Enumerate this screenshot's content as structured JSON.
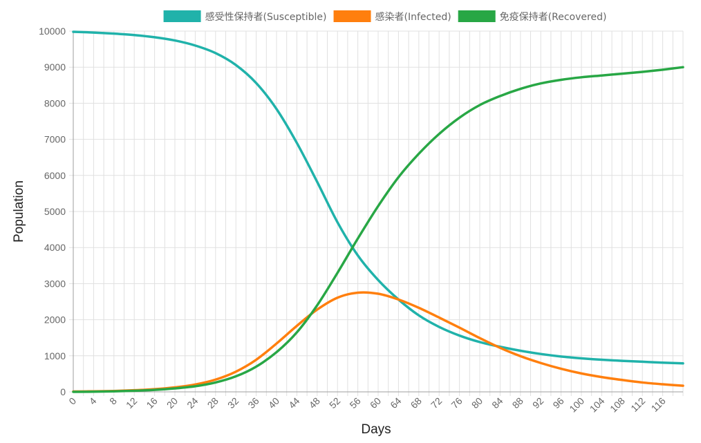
{
  "chart_data": {
    "type": "line",
    "xlabel": "Days",
    "ylabel": "Population",
    "xlim": [
      0,
      120
    ],
    "ylim": [
      0,
      10000
    ],
    "x_ticks": [
      0,
      4,
      8,
      12,
      16,
      20,
      24,
      28,
      32,
      36,
      40,
      44,
      48,
      52,
      56,
      60,
      64,
      68,
      72,
      76,
      80,
      84,
      88,
      92,
      96,
      100,
      104,
      108,
      112,
      116
    ],
    "y_ticks": [
      0,
      1000,
      2000,
      3000,
      4000,
      5000,
      6000,
      7000,
      8000,
      9000,
      10000
    ],
    "grid": true,
    "legend_position": "top",
    "x": [
      0,
      4,
      8,
      12,
      16,
      20,
      24,
      28,
      32,
      36,
      40,
      44,
      48,
      52,
      56,
      60,
      64,
      68,
      72,
      76,
      80,
      84,
      88,
      92,
      96,
      100,
      104,
      108,
      112,
      116,
      120
    ],
    "series": [
      {
        "name": "感受性保持者(Susceptible)",
        "color": "#20b2aa",
        "values": [
          9980,
          9960,
          9930,
          9890,
          9830,
          9740,
          9600,
          9390,
          9060,
          8560,
          7840,
          6900,
          5820,
          4700,
          3780,
          3100,
          2560,
          2120,
          1800,
          1560,
          1380,
          1250,
          1140,
          1050,
          980,
          930,
          890,
          860,
          835,
          810,
          790
        ]
      },
      {
        "name": "感染者(Infected)",
        "color": "#ff7f0e",
        "values": [
          10,
          15,
          25,
          45,
          75,
          125,
          205,
          340,
          560,
          890,
          1340,
          1830,
          2280,
          2610,
          2750,
          2720,
          2560,
          2330,
          2060,
          1780,
          1490,
          1220,
          990,
          800,
          640,
          510,
          410,
          330,
          260,
          210,
          170
        ]
      },
      {
        "name": "免疫保持者(Recovered)",
        "color": "#28a745",
        "values": [
          0,
          5,
          15,
          30,
          55,
          95,
          155,
          260,
          430,
          700,
          1100,
          1650,
          2400,
          3300,
          4250,
          5150,
          5950,
          6600,
          7150,
          7600,
          7950,
          8200,
          8400,
          8550,
          8650,
          8720,
          8770,
          8820,
          8870,
          8930,
          9000
        ]
      }
    ]
  }
}
